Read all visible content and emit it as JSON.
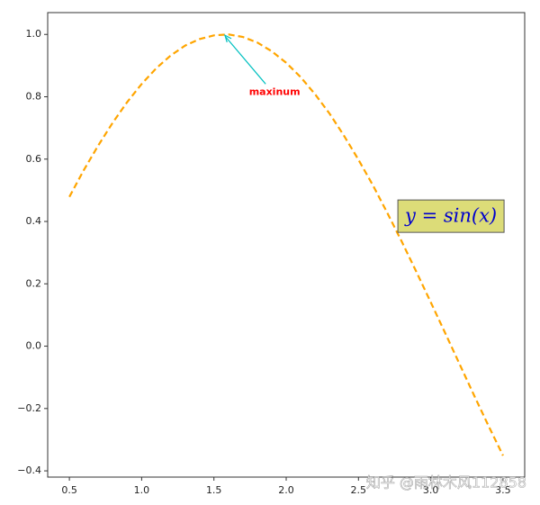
{
  "chart_data": {
    "type": "line",
    "x": [
      0.5,
      0.6,
      0.7,
      0.8,
      0.9,
      1.0,
      1.1,
      1.2,
      1.3,
      1.4,
      1.5,
      1.6,
      1.7,
      1.8,
      1.9,
      2.0,
      2.1,
      2.2,
      2.3,
      2.4,
      2.5,
      2.6,
      2.7,
      2.8,
      2.9,
      3.0,
      3.1,
      3.2,
      3.3,
      3.4,
      3.5
    ],
    "series": [
      {
        "color": "#ffa500",
        "dashed": true,
        "values": [
          0.479,
          0.565,
          0.644,
          0.717,
          0.783,
          0.841,
          0.891,
          0.932,
          0.964,
          0.985,
          0.997,
          1.0,
          0.992,
          0.974,
          0.946,
          0.909,
          0.863,
          0.808,
          0.746,
          0.675,
          0.598,
          0.516,
          0.427,
          0.335,
          0.239,
          0.141,
          0.042,
          -0.058,
          -0.158,
          -0.256,
          -0.351
        ]
      }
    ],
    "xlim": [
      0.35,
      3.65
    ],
    "ylim": [
      -0.42,
      1.07
    ],
    "xticks": [
      {
        "value": 0.5,
        "label": "0.5"
      },
      {
        "value": 1.0,
        "label": "1.0"
      },
      {
        "value": 1.5,
        "label": "1.5"
      },
      {
        "value": 2.0,
        "label": "2.0"
      },
      {
        "value": 2.5,
        "label": "2.5"
      },
      {
        "value": 3.0,
        "label": "3.0"
      },
      {
        "value": 3.5,
        "label": "3.5"
      }
    ],
    "yticks": [
      {
        "value": -0.4,
        "label": "−0.4"
      },
      {
        "value": -0.2,
        "label": "−0.2"
      },
      {
        "value": 0.0,
        "label": "0.0"
      },
      {
        "value": 0.2,
        "label": "0.2"
      },
      {
        "value": 0.4,
        "label": "0.4"
      },
      {
        "value": 0.6,
        "label": "0.6"
      },
      {
        "value": 0.8,
        "label": "0.8"
      },
      {
        "value": 1.0,
        "label": "1.0"
      }
    ],
    "annotations": [
      {
        "text": "maxinum",
        "xy": [
          1.57,
          1.0
        ],
        "xytext": [
          1.92,
          0.815
        ],
        "color": "#ff0000",
        "arrow_color": "#00c0c0"
      },
      {
        "text": "y = sin(x)",
        "xy": [
          3.14,
          0.417
        ],
        "color": "#0000cc",
        "box_color": "#dcdc78"
      }
    ],
    "watermark": "知乎 @雨林木风112858"
  }
}
